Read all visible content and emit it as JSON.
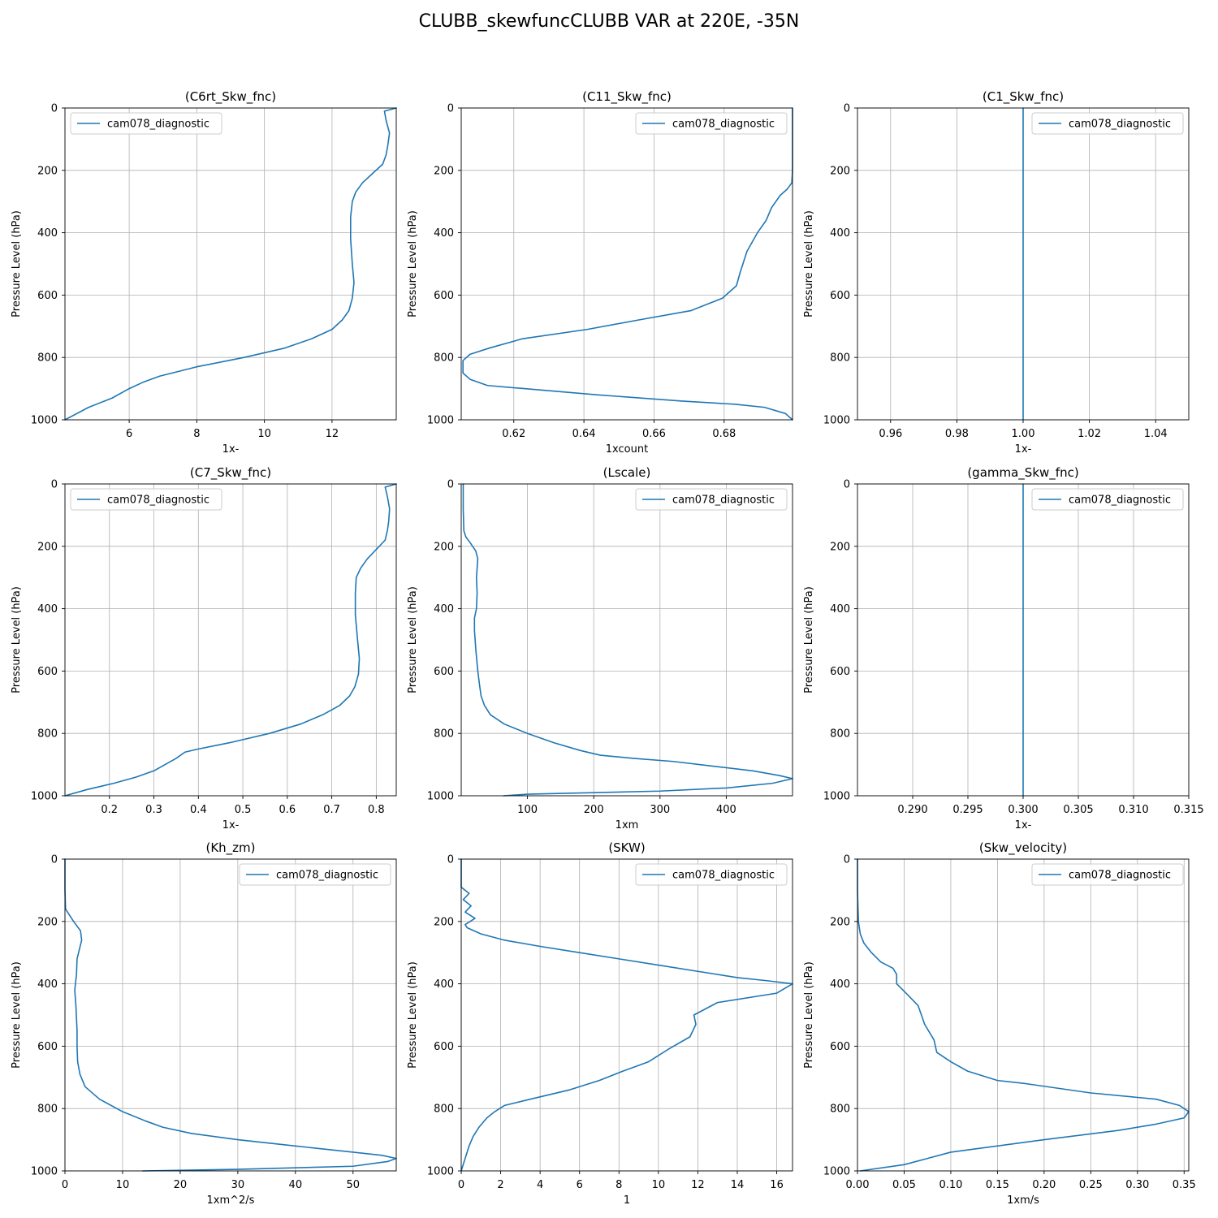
{
  "figure": {
    "title": "CLUBB_skewfuncCLUBB VAR at 220E, -35N",
    "line_color": "#1f77b4",
    "grid_color": "#b0b0b0"
  },
  "chart_data": [
    {
      "type": "line",
      "title": "(C6rt_Skw_fnc)",
      "xlabel": "1x-",
      "ylabel": "Pressure Level (hPa)",
      "xlim": [
        4.1,
        13.9
      ],
      "ylim": [
        1000,
        0
      ],
      "y_inverted": true,
      "xticks": [
        6,
        8,
        10,
        12
      ],
      "xtick_labels": [
        "6",
        "8",
        "10",
        "12"
      ],
      "yticks": [
        0,
        200,
        400,
        600,
        800,
        1000
      ],
      "ytick_labels": [
        "0",
        "200",
        "400",
        "600",
        "800",
        "1000"
      ],
      "grid": true,
      "legend": "upper left",
      "series": [
        {
          "name": "cam078_diagnostic",
          "x": [
            13.9,
            13.55,
            13.6,
            13.7,
            13.65,
            13.6,
            13.5,
            13.2,
            12.9,
            12.7,
            12.6,
            12.55,
            12.55,
            12.6,
            12.65,
            12.6,
            12.5,
            12.3,
            12.0,
            11.4,
            10.6,
            9.4,
            8.0,
            6.9,
            6.4,
            6.0,
            5.5,
            4.8,
            4.1
          ],
          "y": [
            0,
            10,
            40,
            80,
            120,
            150,
            180,
            210,
            240,
            270,
            300,
            350,
            420,
            500,
            560,
            610,
            650,
            680,
            710,
            740,
            770,
            800,
            830,
            860,
            880,
            900,
            930,
            960,
            1000
          ]
        }
      ]
    },
    {
      "type": "line",
      "title": "(C11_Skw_fnc)",
      "xlabel": "1xcount",
      "ylabel": "Pressure Level (hPa)",
      "xlim": [
        0.605,
        0.6995
      ],
      "ylim": [
        1000,
        0
      ],
      "y_inverted": true,
      "xticks": [
        0.62,
        0.64,
        0.66,
        0.68
      ],
      "xtick_labels": [
        "0.62",
        "0.64",
        "0.66",
        "0.68"
      ],
      "yticks": [
        0,
        200,
        400,
        600,
        800,
        1000
      ],
      "ytick_labels": [
        "0",
        "200",
        "400",
        "600",
        "800",
        "1000"
      ],
      "grid": true,
      "legend": "upper right",
      "series": [
        {
          "name": "cam078_diagnostic",
          "x": [
            0.6995,
            0.6995,
            0.6995,
            0.6993,
            0.698,
            0.696,
            0.6935,
            0.692,
            0.6895,
            0.6865,
            0.6845,
            0.6835,
            0.6795,
            0.6705,
            0.6555,
            0.641,
            0.6225,
            0.613,
            0.6075,
            0.6055,
            0.6055,
            0.6075,
            0.6125,
            0.623,
            0.644,
            0.668,
            0.683,
            0.6915,
            0.6975,
            0.6995
          ],
          "y": [
            0,
            100,
            200,
            240,
            260,
            280,
            320,
            360,
            400,
            460,
            530,
            570,
            610,
            650,
            680,
            710,
            740,
            770,
            790,
            810,
            850,
            870,
            890,
            900,
            920,
            940,
            950,
            960,
            980,
            1000
          ]
        }
      ]
    },
    {
      "type": "line",
      "title": "(C1_Skw_fnc)",
      "xlabel": "1x-",
      "ylabel": "Pressure Level (hPa)",
      "xlim": [
        0.95,
        1.05
      ],
      "ylim": [
        1000,
        0
      ],
      "y_inverted": true,
      "xticks": [
        0.96,
        0.98,
        1.0,
        1.02,
        1.04
      ],
      "xtick_labels": [
        "0.96",
        "0.98",
        "1.00",
        "1.02",
        "1.04"
      ],
      "yticks": [
        0,
        200,
        400,
        600,
        800,
        1000
      ],
      "ytick_labels": [
        "0",
        "200",
        "400",
        "600",
        "800",
        "1000"
      ],
      "grid": true,
      "legend": "upper right",
      "series": [
        {
          "name": "cam078_diagnostic",
          "x": [
            1.0,
            1.0
          ],
          "y": [
            0,
            1000
          ]
        }
      ]
    },
    {
      "type": "line",
      "title": "(C7_Skw_fnc)",
      "xlabel": "1x-",
      "ylabel": "Pressure Level (hPa)",
      "xlim": [
        0.1,
        0.845
      ],
      "ylim": [
        1000,
        0
      ],
      "y_inverted": true,
      "xticks": [
        0.2,
        0.3,
        0.4,
        0.5,
        0.6,
        0.7,
        0.8
      ],
      "xtick_labels": [
        "0.2",
        "0.3",
        "0.4",
        "0.5",
        "0.6",
        "0.7",
        "0.8"
      ],
      "yticks": [
        0,
        200,
        400,
        600,
        800,
        1000
      ],
      "ytick_labels": [
        "0",
        "200",
        "400",
        "600",
        "800",
        "1000"
      ],
      "grid": true,
      "legend": "upper left",
      "series": [
        {
          "name": "cam078_diagnostic",
          "x": [
            0.845,
            0.82,
            0.825,
            0.83,
            0.828,
            0.825,
            0.82,
            0.8,
            0.78,
            0.765,
            0.755,
            0.753,
            0.753,
            0.758,
            0.762,
            0.76,
            0.752,
            0.74,
            0.718,
            0.68,
            0.63,
            0.56,
            0.47,
            0.4,
            0.37,
            0.35,
            0.3,
            0.26,
            0.21,
            0.15,
            0.1
          ],
          "y": [
            0,
            10,
            40,
            80,
            120,
            150,
            180,
            210,
            240,
            270,
            300,
            350,
            420,
            500,
            560,
            610,
            650,
            680,
            710,
            740,
            770,
            800,
            830,
            850,
            860,
            880,
            920,
            940,
            960,
            980,
            1000
          ]
        }
      ]
    },
    {
      "type": "line",
      "title": "(Lscale)",
      "xlabel": "1xm",
      "ylabel": "Pressure Level (hPa)",
      "xlim": [
        0,
        500
      ],
      "ylim": [
        1000,
        0
      ],
      "y_inverted": true,
      "xticks": [
        100,
        200,
        300,
        400
      ],
      "xtick_labels": [
        "100",
        "200",
        "300",
        "400"
      ],
      "yticks": [
        0,
        200,
        400,
        600,
        800,
        1000
      ],
      "ytick_labels": [
        "0",
        "200",
        "400",
        "600",
        "800",
        "1000"
      ],
      "grid": true,
      "legend": "upper right",
      "series": [
        {
          "name": "cam078_diagnostic",
          "x": [
            3,
            3,
            4,
            7,
            14,
            22,
            25,
            24,
            23,
            24,
            23,
            20,
            20,
            22,
            25,
            28,
            30,
            35,
            44,
            65,
            100,
            140,
            180,
            210,
            260,
            320,
            380,
            440,
            480,
            500,
            470,
            400,
            300,
            200,
            100,
            64
          ],
          "y": [
            0,
            80,
            150,
            170,
            190,
            215,
            240,
            270,
            300,
            350,
            400,
            430,
            470,
            530,
            600,
            650,
            680,
            710,
            740,
            770,
            800,
            830,
            855,
            870,
            880,
            890,
            905,
            920,
            935,
            945,
            960,
            975,
            985,
            990,
            995,
            1000
          ]
        }
      ]
    },
    {
      "type": "line",
      "title": "(gamma_Skw_fnc)",
      "xlabel": "1x-",
      "ylabel": "Pressure Level (hPa)",
      "xlim": [
        0.285,
        0.315
      ],
      "ylim": [
        1000,
        0
      ],
      "y_inverted": true,
      "xticks": [
        0.29,
        0.295,
        0.3,
        0.305,
        0.31,
        0.315
      ],
      "xtick_labels": [
        "0.290",
        "0.295",
        "0.300",
        "0.305",
        "0.310",
        "0.315"
      ],
      "yticks": [
        0,
        200,
        400,
        600,
        800,
        1000
      ],
      "ytick_labels": [
        "0",
        "200",
        "400",
        "600",
        "800",
        "1000"
      ],
      "grid": true,
      "legend": "upper right",
      "series": [
        {
          "name": "cam078_diagnostic",
          "x": [
            0.3,
            0.3
          ],
          "y": [
            0,
            1000
          ]
        }
      ]
    },
    {
      "type": "line",
      "title": "(Kh_zm)",
      "xlabel": "1xm^2/s",
      "ylabel": "Pressure Level (hPa)",
      "xlim": [
        0,
        57.5
      ],
      "ylim": [
        1000,
        0
      ],
      "y_inverted": true,
      "xticks": [
        0,
        10,
        20,
        30,
        40,
        50
      ],
      "xtick_labels": [
        "0",
        "10",
        "20",
        "30",
        "40",
        "50"
      ],
      "yticks": [
        0,
        200,
        400,
        600,
        800,
        1000
      ],
      "ytick_labels": [
        "0",
        "200",
        "400",
        "600",
        "800",
        "1000"
      ],
      "grid": true,
      "legend": "upper right",
      "series": [
        {
          "name": "cam078_diagnostic",
          "x": [
            0.0,
            0.0,
            0.1,
            1.5,
            2.7,
            2.9,
            2.5,
            2.1,
            2.0,
            1.7,
            1.9,
            2.1,
            2.1,
            2.2,
            2.6,
            3.5,
            6.0,
            10.0,
            14.0,
            17.0,
            22.0,
            30.0,
            40.0,
            50.0,
            55.0,
            57.5,
            56.0,
            50.0,
            30.0,
            13.5
          ],
          "y": [
            0,
            100,
            160,
            200,
            230,
            260,
            290,
            320,
            370,
            420,
            470,
            550,
            600,
            650,
            690,
            730,
            770,
            810,
            840,
            860,
            880,
            900,
            920,
            940,
            950,
            960,
            970,
            985,
            995,
            1000
          ]
        }
      ]
    },
    {
      "type": "line",
      "title": "(SKW)",
      "xlabel": "1",
      "ylabel": "Pressure Level (hPa)",
      "xlim": [
        0,
        16.8
      ],
      "ylim": [
        1000,
        0
      ],
      "y_inverted": true,
      "xticks": [
        0,
        2,
        4,
        6,
        8,
        10,
        12,
        14,
        16
      ],
      "xtick_labels": [
        "0",
        "2",
        "4",
        "6",
        "8",
        "10",
        "12",
        "14",
        "16"
      ],
      "yticks": [
        0,
        200,
        400,
        600,
        800,
        1000
      ],
      "ytick_labels": [
        "0",
        "200",
        "400",
        "600",
        "800",
        "1000"
      ],
      "grid": true,
      "legend": "upper right",
      "series": [
        {
          "name": "cam078_diagnostic",
          "x": [
            0.0,
            0.0,
            0.4,
            0.1,
            0.5,
            0.2,
            0.7,
            0.2,
            0.3,
            1.0,
            2.2,
            4.0,
            6.0,
            8.0,
            10.0,
            12.0,
            14.0,
            15.5,
            16.8,
            16.0,
            13.0,
            11.8,
            11.9,
            11.6,
            10.5,
            9.5,
            8.2,
            7.0,
            5.5,
            3.5,
            2.2,
            1.7,
            1.3,
            0.9,
            0.6,
            0.4,
            0.2,
            0.0
          ],
          "y": [
            0,
            90,
            110,
            130,
            150,
            170,
            190,
            210,
            220,
            240,
            260,
            280,
            300,
            320,
            340,
            360,
            380,
            390,
            400,
            430,
            460,
            500,
            530,
            570,
            610,
            650,
            680,
            710,
            740,
            770,
            790,
            810,
            830,
            860,
            890,
            920,
            960,
            1000
          ]
        }
      ]
    },
    {
      "type": "line",
      "title": "(Skw_velocity)",
      "xlabel": "1xm/s",
      "ylabel": "Pressure Level (hPa)",
      "xlim": [
        0,
        0.355
      ],
      "ylim": [
        1000,
        0
      ],
      "y_inverted": true,
      "xticks": [
        0.0,
        0.05,
        0.1,
        0.15,
        0.2,
        0.25,
        0.3,
        0.35
      ],
      "xtick_labels": [
        "0.00",
        "0.05",
        "0.10",
        "0.15",
        "0.20",
        "0.25",
        "0.30",
        "0.35"
      ],
      "yticks": [
        0,
        200,
        400,
        600,
        800,
        1000
      ],
      "ytick_labels": [
        "0",
        "200",
        "400",
        "600",
        "800",
        "1000"
      ],
      "grid": true,
      "legend": "upper right",
      "series": [
        {
          "name": "cam078_diagnostic",
          "x": [
            0.0,
            0.0,
            0.001,
            0.003,
            0.007,
            0.015,
            0.025,
            0.038,
            0.042,
            0.042,
            0.052,
            0.065,
            0.072,
            0.082,
            0.085,
            0.1,
            0.118,
            0.15,
            0.18,
            0.25,
            0.32,
            0.345,
            0.355,
            0.35,
            0.32,
            0.28,
            0.2,
            0.1,
            0.05,
            0.003
          ],
          "y": [
            0,
            100,
            200,
            240,
            270,
            300,
            330,
            350,
            370,
            400,
            430,
            470,
            530,
            580,
            620,
            650,
            680,
            710,
            720,
            750,
            770,
            790,
            810,
            830,
            850,
            870,
            900,
            940,
            980,
            1000
          ]
        }
      ]
    }
  ]
}
